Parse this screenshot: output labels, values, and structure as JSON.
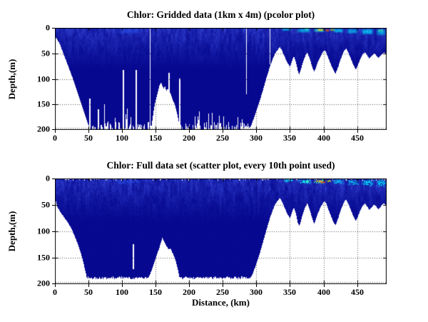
{
  "figure": {
    "background": "#FFFFFF",
    "kind": "MATLAB-style figure, two stacked depth sections of chlorophyll"
  },
  "chart_data": [
    {
      "type": "heatmap",
      "plot_style": "pcolor",
      "title": "Chlor: Gridded data (1km x 4m) (pcolor plot)",
      "xlabel": "",
      "ylabel": "Depth,(m)",
      "variable": "Chlorophyll",
      "xlim": [
        0,
        494
      ],
      "ylim": [
        200,
        0
      ],
      "xticks": [
        0,
        50,
        100,
        150,
        200,
        250,
        300,
        350,
        400,
        450
      ],
      "yticks": [
        0,
        50,
        100,
        150,
        200
      ],
      "grid": "dotted",
      "legend": "none",
      "low_color": "#06088F",
      "high_colors": [
        "#1E50FF",
        "#00D8F0",
        "#50E870",
        "#D8E820",
        "#FF4020"
      ],
      "data_bottom_m": 200,
      "floor_comb": true,
      "surface_notches": false,
      "seafloor_profile": [
        [
          0,
          16
        ],
        [
          4,
          24
        ],
        [
          8,
          34
        ],
        [
          12,
          48
        ],
        [
          16,
          62
        ],
        [
          20,
          76
        ],
        [
          24,
          90
        ],
        [
          28,
          104
        ],
        [
          32,
          120
        ],
        [
          36,
          136
        ],
        [
          40,
          152
        ],
        [
          44,
          168
        ],
        [
          48,
          184
        ],
        [
          52,
          197
        ],
        [
          55,
          200
        ],
        [
          136,
          200
        ],
        [
          143,
          200
        ],
        [
          146,
          172
        ],
        [
          148,
          155
        ],
        [
          150,
          143
        ],
        [
          152,
          132
        ],
        [
          154,
          122
        ],
        [
          156,
          112
        ],
        [
          158,
          107
        ],
        [
          160,
          113
        ],
        [
          162,
          119
        ],
        [
          164,
          114
        ],
        [
          166,
          124
        ],
        [
          168,
          118
        ],
        [
          170,
          131
        ],
        [
          172,
          127
        ],
        [
          174,
          136
        ],
        [
          176,
          143
        ],
        [
          178,
          149
        ],
        [
          180,
          157
        ],
        [
          182,
          168
        ],
        [
          184,
          181
        ],
        [
          186,
          193
        ],
        [
          188,
          200
        ],
        [
          288,
          200
        ],
        [
          292,
          192
        ],
        [
          296,
          178
        ],
        [
          300,
          163
        ],
        [
          304,
          147
        ],
        [
          308,
          130
        ],
        [
          312,
          112
        ],
        [
          316,
          94
        ],
        [
          320,
          77
        ],
        [
          324,
          62
        ],
        [
          328,
          50
        ],
        [
          332,
          43
        ],
        [
          335,
          38
        ],
        [
          338,
          44
        ],
        [
          341,
          53
        ],
        [
          344,
          62
        ],
        [
          347,
          70
        ],
        [
          350,
          76
        ],
        [
          352,
          69
        ],
        [
          354,
          61
        ],
        [
          356,
          56
        ],
        [
          358,
          63
        ],
        [
          360,
          73
        ],
        [
          362,
          86
        ],
        [
          364,
          91
        ],
        [
          366,
          83
        ],
        [
          368,
          73
        ],
        [
          370,
          65
        ],
        [
          372,
          58
        ],
        [
          374,
          52
        ],
        [
          376,
          48
        ],
        [
          378,
          55
        ],
        [
          380,
          63
        ],
        [
          382,
          71
        ],
        [
          384,
          79
        ],
        [
          386,
          86
        ],
        [
          388,
          81
        ],
        [
          390,
          73
        ],
        [
          392,
          66
        ],
        [
          394,
          60
        ],
        [
          396,
          55
        ],
        [
          398,
          50
        ],
        [
          400,
          46
        ],
        [
          402,
          44
        ],
        [
          404,
          48
        ],
        [
          406,
          55
        ],
        [
          408,
          62
        ],
        [
          410,
          68
        ],
        [
          412,
          75
        ],
        [
          414,
          81
        ],
        [
          416,
          86
        ],
        [
          418,
          89
        ],
        [
          420,
          83
        ],
        [
          422,
          76
        ],
        [
          424,
          68
        ],
        [
          426,
          60
        ],
        [
          428,
          53
        ],
        [
          430,
          47
        ],
        [
          432,
          43
        ],
        [
          434,
          41
        ],
        [
          436,
          46
        ],
        [
          438,
          52
        ],
        [
          440,
          58
        ],
        [
          442,
          65
        ],
        [
          444,
          71
        ],
        [
          446,
          77
        ],
        [
          448,
          81
        ],
        [
          450,
          77
        ],
        [
          452,
          70
        ],
        [
          454,
          64
        ],
        [
          456,
          58
        ],
        [
          458,
          53
        ],
        [
          460,
          50
        ],
        [
          462,
          48
        ],
        [
          464,
          52
        ],
        [
          466,
          56
        ],
        [
          468,
          60
        ],
        [
          470,
          58
        ],
        [
          472,
          55
        ],
        [
          474,
          52
        ],
        [
          476,
          50
        ],
        [
          478,
          53
        ],
        [
          480,
          57
        ],
        [
          482,
          59
        ],
        [
          484,
          56
        ],
        [
          486,
          53
        ],
        [
          488,
          50
        ],
        [
          490,
          48
        ],
        [
          492,
          50
        ],
        [
          494,
          52
        ]
      ],
      "gap_columns": [
        [
          142,
          0,
          200
        ],
        [
          102,
          82,
          200
        ],
        [
          121,
          83,
          200
        ],
        [
          52,
          138,
          200
        ],
        [
          65,
          160,
          200
        ],
        [
          74,
          150,
          200
        ],
        [
          170,
          88,
          200
        ],
        [
          186,
          99,
          200
        ],
        [
          229,
          168,
          200
        ],
        [
          285,
          0,
          130
        ],
        [
          320,
          0,
          72
        ]
      ],
      "surface_blooms": [
        [
          88,
          132,
          0,
          13,
          "#2A5CFF",
          0.5
        ],
        [
          336,
          354,
          0,
          7,
          "#00D8F0",
          0.75
        ],
        [
          358,
          383,
          0,
          11,
          "#00CCF0",
          0.8
        ],
        [
          371,
          379,
          0,
          6,
          "#40FFC0",
          0.7
        ],
        [
          384,
          403,
          0,
          10,
          "#30F0D0",
          0.8
        ],
        [
          390,
          401,
          1,
          7,
          "#FFE000",
          0.85
        ],
        [
          402,
          409,
          2,
          8,
          "#FF7000",
          0.8
        ],
        [
          405,
          408,
          3,
          7,
          "#FF2000",
          0.9
        ],
        [
          409,
          418,
          1,
          7,
          "#C8F000",
          0.7
        ],
        [
          413,
          431,
          0,
          11,
          "#00E0FF",
          0.8
        ],
        [
          433,
          453,
          0,
          13,
          "#00CCF0",
          0.75
        ],
        [
          455,
          476,
          0,
          15,
          "#00E0FF",
          0.85
        ],
        [
          477,
          494,
          0,
          17,
          "#00D0F0",
          0.8
        ],
        [
          480,
          490,
          2,
          8,
          "#60FFA0",
          0.6
        ]
      ]
    },
    {
      "type": "scatter",
      "plot_style": "scatter",
      "title": "Chlor: Full data set (scatter plot, every 10th point used)",
      "xlabel": "Distance, (km)",
      "ylabel": "Depth,(m)",
      "variable": "Chlorophyll",
      "xlim": [
        0,
        494
      ],
      "ylim": [
        200,
        0
      ],
      "xticks": [
        0,
        50,
        100,
        150,
        200,
        250,
        300,
        350,
        400,
        450
      ],
      "yticks": [
        0,
        50,
        100,
        150,
        200
      ],
      "grid": "dotted",
      "legend": "none",
      "low_color": "#06088F",
      "high_colors": [
        "#1E50FF",
        "#00D8F0",
        "#50E870",
        "#D8E820",
        "#FF4020"
      ],
      "data_bottom_m": 188,
      "floor_comb": false,
      "surface_notches": true,
      "seafloor_profile": [
        [
          0,
          30
        ],
        [
          2,
          46
        ],
        [
          4,
          55
        ],
        [
          7,
          61
        ],
        [
          10,
          67
        ],
        [
          14,
          74
        ],
        [
          18,
          81
        ],
        [
          22,
          89
        ],
        [
          26,
          99
        ],
        [
          30,
          111
        ],
        [
          34,
          124
        ],
        [
          38,
          139
        ],
        [
          41,
          152
        ],
        [
          44,
          168
        ],
        [
          46,
          179
        ],
        [
          48,
          190
        ],
        [
          138,
          190
        ],
        [
          142,
          181
        ],
        [
          146,
          166
        ],
        [
          149,
          155
        ],
        [
          152,
          144
        ],
        [
          155,
          133
        ],
        [
          158,
          121
        ],
        [
          160,
          112
        ],
        [
          162,
          117
        ],
        [
          164,
          123
        ],
        [
          166,
          128
        ],
        [
          168,
          131
        ],
        [
          170,
          135
        ],
        [
          172,
          132
        ],
        [
          174,
          138
        ],
        [
          176,
          143
        ],
        [
          178,
          149
        ],
        [
          180,
          156
        ],
        [
          182,
          166
        ],
        [
          184,
          178
        ],
        [
          186,
          190
        ],
        [
          290,
          190
        ],
        [
          294,
          182
        ],
        [
          297,
          172
        ],
        [
          300,
          161
        ],
        [
          304,
          146
        ],
        [
          308,
          129
        ],
        [
          312,
          111
        ],
        [
          316,
          93
        ],
        [
          320,
          76
        ],
        [
          324,
          61
        ],
        [
          328,
          49
        ],
        [
          332,
          42
        ],
        [
          335,
          37
        ],
        [
          338,
          43
        ],
        [
          341,
          52
        ],
        [
          344,
          61
        ],
        [
          347,
          69
        ],
        [
          350,
          75
        ],
        [
          352,
          68
        ],
        [
          354,
          60
        ],
        [
          356,
          55
        ],
        [
          358,
          62
        ],
        [
          360,
          72
        ],
        [
          362,
          85
        ],
        [
          364,
          90
        ],
        [
          366,
          82
        ],
        [
          368,
          72
        ],
        [
          370,
          64
        ],
        [
          372,
          57
        ],
        [
          374,
          51
        ],
        [
          376,
          47
        ],
        [
          378,
          54
        ],
        [
          380,
          62
        ],
        [
          382,
          70
        ],
        [
          384,
          78
        ],
        [
          386,
          85
        ],
        [
          388,
          80
        ],
        [
          390,
          72
        ],
        [
          392,
          65
        ],
        [
          394,
          59
        ],
        [
          396,
          54
        ],
        [
          398,
          49
        ],
        [
          400,
          45
        ],
        [
          402,
          43
        ],
        [
          404,
          47
        ],
        [
          406,
          54
        ],
        [
          408,
          61
        ],
        [
          410,
          67
        ],
        [
          412,
          74
        ],
        [
          414,
          80
        ],
        [
          416,
          85
        ],
        [
          418,
          88
        ],
        [
          420,
          82
        ],
        [
          422,
          75
        ],
        [
          424,
          67
        ],
        [
          426,
          59
        ],
        [
          428,
          52
        ],
        [
          430,
          46
        ],
        [
          432,
          42
        ],
        [
          434,
          40
        ],
        [
          436,
          45
        ],
        [
          438,
          51
        ],
        [
          440,
          57
        ],
        [
          442,
          64
        ],
        [
          444,
          70
        ],
        [
          446,
          76
        ],
        [
          448,
          80
        ],
        [
          450,
          76
        ],
        [
          452,
          69
        ],
        [
          454,
          63
        ],
        [
          456,
          57
        ],
        [
          458,
          52
        ],
        [
          460,
          49
        ],
        [
          462,
          47
        ],
        [
          464,
          51
        ],
        [
          466,
          55
        ],
        [
          468,
          59
        ],
        [
          470,
          57
        ],
        [
          472,
          54
        ],
        [
          474,
          51
        ],
        [
          476,
          49
        ],
        [
          478,
          52
        ],
        [
          480,
          56
        ],
        [
          482,
          58
        ],
        [
          484,
          55
        ],
        [
          486,
          52
        ],
        [
          488,
          49
        ],
        [
          490,
          47
        ],
        [
          492,
          49
        ],
        [
          494,
          51
        ]
      ],
      "gap_columns": [
        [
          117,
          125,
          172
        ]
      ],
      "surface_blooms": [
        [
          88,
          132,
          0,
          12,
          "#2A5CFF",
          0.45
        ],
        [
          338,
          356,
          0,
          8,
          "#00D8F0",
          0.7
        ],
        [
          360,
          384,
          0,
          12,
          "#00CCF0",
          0.75
        ],
        [
          368,
          380,
          2,
          9,
          "#40FFC0",
          0.6
        ],
        [
          384,
          404,
          1,
          11,
          "#50F0B0",
          0.75
        ],
        [
          388,
          400,
          2,
          8,
          "#FFD800",
          0.8
        ],
        [
          395,
          404,
          3,
          10,
          "#FF5000",
          0.8
        ],
        [
          404,
          412,
          2,
          8,
          "#D0F000",
          0.7
        ],
        [
          412,
          432,
          0,
          12,
          "#00E0FF",
          0.75
        ],
        [
          434,
          454,
          0,
          14,
          "#00CCF0",
          0.7
        ],
        [
          456,
          477,
          0,
          16,
          "#00E0FF",
          0.8
        ],
        [
          478,
          494,
          0,
          18,
          "#00D0F0",
          0.75
        ]
      ]
    }
  ]
}
